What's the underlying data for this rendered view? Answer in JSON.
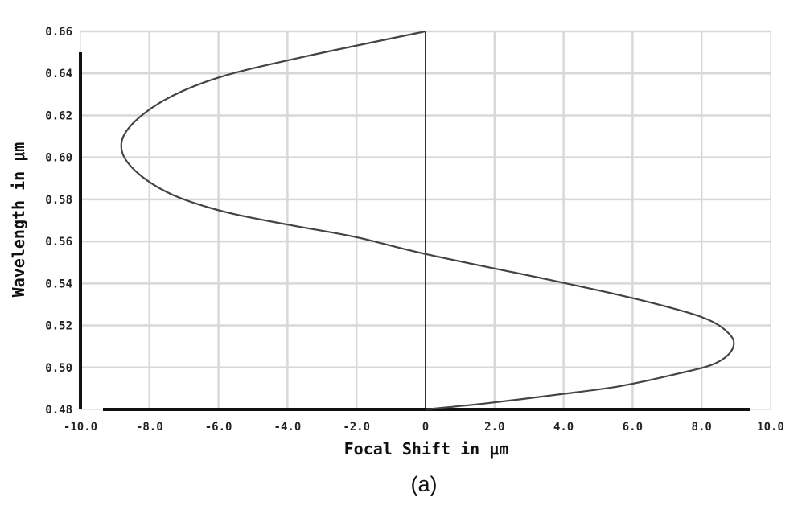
{
  "chart_data": {
    "type": "line",
    "xlabel": "Focal Shift in μm",
    "ylabel": "Wavelength in μm",
    "caption": "(a)",
    "xlim": [
      -10,
      10
    ],
    "ylim": [
      0.48,
      0.66
    ],
    "x_ticks": [
      "-10.0",
      "-8.0",
      "-6.0",
      "-4.0",
      "-2.0",
      "0",
      "2.0",
      "4.0",
      "6.0",
      "8.0",
      "10.0"
    ],
    "y_ticks": [
      "0.48",
      "0.50",
      "0.52",
      "0.54",
      "0.56",
      "0.58",
      "0.60",
      "0.62",
      "0.64",
      "0.66"
    ],
    "grid": true,
    "series": [
      {
        "x": [
          0.0,
          1.8,
          3.8,
          5.6,
          7.3,
          8.4,
          8.9,
          8.8,
          8.0,
          6.0,
          3.5,
          0.0,
          -2.0,
          -4.0,
          -5.8,
          -7.3,
          -8.3,
          -8.8,
          -8.6,
          -7.6,
          -6.0,
          -3.5,
          0.0
        ],
        "y": [
          0.48,
          0.483,
          0.487,
          0.491,
          0.497,
          0.502,
          0.509,
          0.516,
          0.524,
          0.533,
          0.542,
          0.554,
          0.562,
          0.568,
          0.574,
          0.582,
          0.592,
          0.603,
          0.614,
          0.627,
          0.638,
          0.648,
          0.66
        ]
      }
    ],
    "colors": {
      "curve": "#444444",
      "grid": "#d8d8d8",
      "zero_line": "#333333",
      "axes": "#111111"
    }
  }
}
